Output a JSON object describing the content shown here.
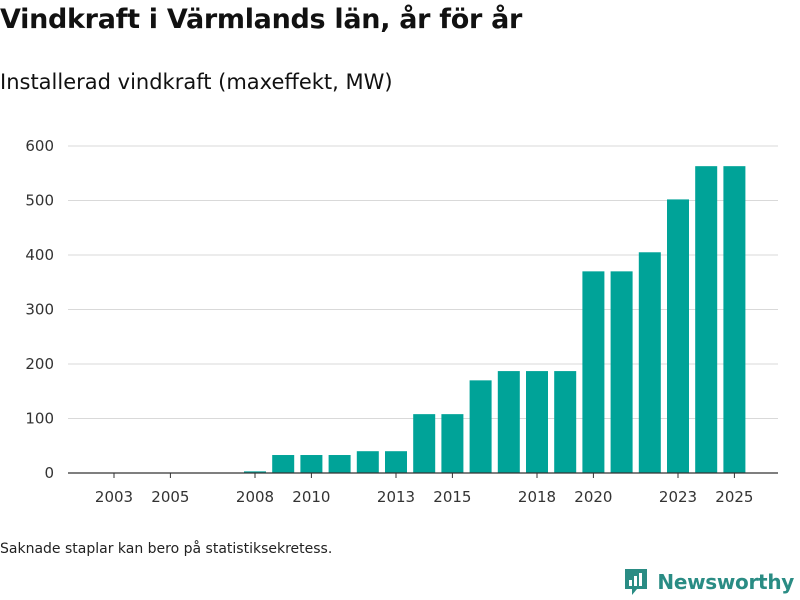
{
  "chart_data": {
    "type": "bar",
    "title": "Vindkraft i Värmlands län, år för år",
    "subtitle": "Installerad vindkraft (maxeffekt, MW)",
    "xlabel": "",
    "ylabel": "",
    "categories": [
      "2003",
      "2004",
      "2005",
      "2006",
      "2007",
      "2008",
      "2009",
      "2010",
      "2011",
      "2012",
      "2013",
      "2014",
      "2015",
      "2016",
      "2017",
      "2018",
      "2019",
      "2020",
      "2021",
      "2022",
      "2023",
      "2024",
      "2025"
    ],
    "values": [
      0,
      0,
      0,
      0,
      0,
      3,
      33,
      33,
      33,
      40,
      40,
      108,
      108,
      170,
      187,
      187,
      187,
      370,
      370,
      405,
      502,
      563,
      563
    ],
    "x_tick_labels": [
      "2003",
      "2005",
      "2008",
      "2010",
      "2013",
      "2015",
      "2018",
      "2020",
      "2023",
      "2025"
    ],
    "y_tick_labels": [
      "0",
      "100",
      "200",
      "300",
      "400",
      "500",
      "600"
    ],
    "y_ticks": [
      0,
      100,
      200,
      300,
      400,
      500,
      600
    ],
    "ylim": [
      0,
      600
    ],
    "grid": true,
    "bar_color": "#00a398"
  },
  "footnote": "Saknade staplar kan bero på statistiksekretess.",
  "brand": {
    "name": "Newsworthy",
    "icon": "newsworthy-logo-icon",
    "color": "#2a8c84"
  }
}
